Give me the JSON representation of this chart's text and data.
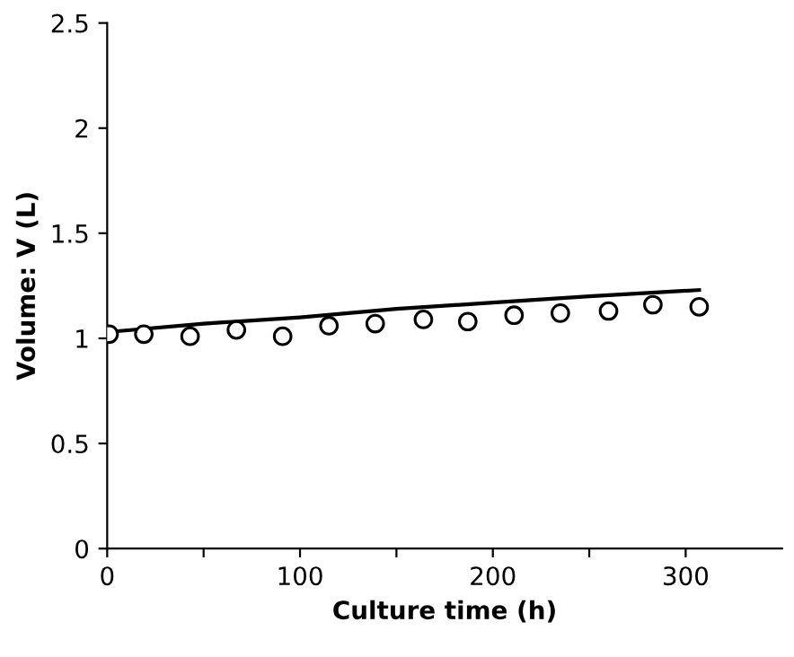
{
  "chart_data": {
    "type": "scatter",
    "xlabel": "Culture time (h)",
    "ylabel": "Volume: V (L)",
    "xlim": [
      0,
      350
    ],
    "ylim": [
      0,
      2.5
    ],
    "xticks": [
      0,
      {
        "value": 50,
        "label": null
      },
      100,
      {
        "value": 150,
        "label": null
      },
      200,
      {
        "value": 250,
        "label": null
      },
      300
    ],
    "yticks": [
      0,
      0.5,
      1,
      1.5,
      2,
      2.5
    ],
    "grid": false,
    "legend": false,
    "series": [
      {
        "marker": "circle",
        "color": "#000000",
        "x": [
          1,
          19,
          43,
          67,
          91,
          115,
          139,
          164,
          187,
          211,
          235,
          260,
          283,
          307
        ],
        "values": [
          1.02,
          1.02,
          1.01,
          1.04,
          1.01,
          1.06,
          1.07,
          1.09,
          1.08,
          1.11,
          1.12,
          1.13,
          1.16,
          1.15
        ]
      },
      {
        "type": "line",
        "marker": "none",
        "line_style": "solid",
        "color": "#000000",
        "x": [
          0,
          50,
          100,
          150,
          200,
          250,
          307
        ],
        "values": [
          1.03,
          1.07,
          1.1,
          1.14,
          1.17,
          1.2,
          1.23
        ]
      }
    ]
  }
}
